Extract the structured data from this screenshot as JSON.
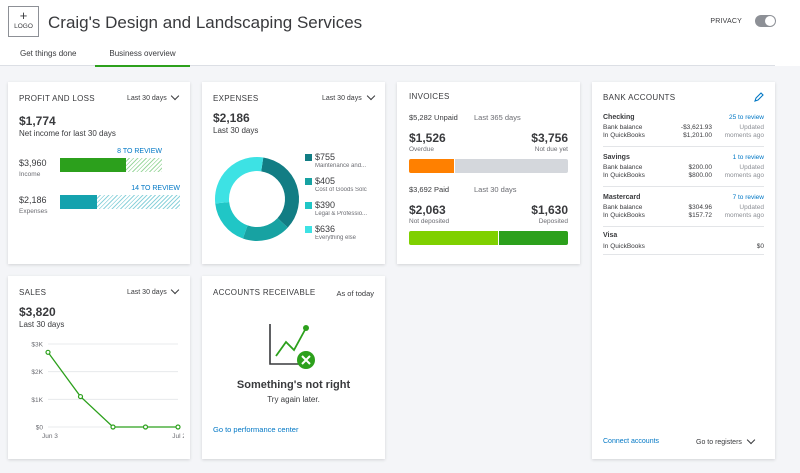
{
  "header": {
    "logo_plus": "+",
    "logo_text": "LOGO",
    "company": "Craig's Design and Landscaping Services",
    "privacy": "PRIVACY"
  },
  "tabs": [
    {
      "label": "Get things done",
      "active": false
    },
    {
      "label": "Business overview",
      "active": true
    }
  ],
  "profit_loss": {
    "title": "PROFIT AND LOSS",
    "period": "Last 30 days",
    "net_value": "$1,774",
    "net_label": "Net income for last 30 days",
    "income_value": "$3,960",
    "income_label": "Income",
    "income_review": "8 TO REVIEW",
    "expenses_value": "$2,186",
    "expenses_label": "Expenses",
    "expenses_review": "14 TO REVIEW",
    "income_fill": 0.65,
    "expenses_fill": 0.31
  },
  "expenses": {
    "title": "EXPENSES",
    "period": "Last 30 days",
    "total": "$2,186",
    "total_label": "Last 30 days",
    "items": [
      {
        "value": "$755",
        "label": "Maintenance and...",
        "amount": 755,
        "color": "#127d84"
      },
      {
        "value": "$405",
        "label": "Cost of Goods Solc",
        "amount": 405,
        "color": "#17a2a2"
      },
      {
        "value": "$390",
        "label": "Legal & Professio...",
        "amount": 390,
        "color": "#20c6c6"
      },
      {
        "value": "$636",
        "label": "Everything else",
        "amount": 636,
        "color": "#3de2e4"
      }
    ]
  },
  "invoices": {
    "title": "INVOICES",
    "unpaid": "$5,282 Unpaid",
    "unpaid_period": "Last 365 days",
    "overdue_value": "$1,526",
    "overdue_label": "Overdue",
    "not_due_value": "$3,756",
    "not_due_label": "Not due yet",
    "paid": "$3,692 Paid",
    "paid_period": "Last 30 days",
    "not_deposited_value": "$2,063",
    "not_deposited_label": "Not deposited",
    "deposited_value": "$1,630",
    "deposited_label": "Deposited",
    "colors": {
      "overdue": "#ff8000",
      "not_due": "#d4d7dc",
      "not_deposited": "#7fd000",
      "deposited": "#2ca01c"
    }
  },
  "bank_accounts": {
    "title": "BANK ACCOUNTS",
    "accounts": [
      {
        "name": "Checking",
        "review": "25 to review",
        "bank_label": "Bank balance",
        "bank_value": "-$3,621.93",
        "qb_label": "In QuickBooks",
        "qb_value": "$1,201.00",
        "updated1": "Updated",
        "updated2": "moments ago"
      },
      {
        "name": "Savings",
        "review": "1 to review",
        "bank_label": "Bank balance",
        "bank_value": "$200.00",
        "qb_label": "In QuickBooks",
        "qb_value": "$800.00",
        "updated1": "Updated",
        "updated2": "moments ago"
      },
      {
        "name": "Mastercard",
        "review": "7 to review",
        "bank_label": "Bank balance",
        "bank_value": "$304.96",
        "qb_label": "In QuickBooks",
        "qb_value": "$157.72",
        "updated1": "Updated",
        "updated2": "moments ago"
      }
    ],
    "visa": {
      "name": "Visa",
      "qb_label": "In QuickBooks",
      "qb_value": "$0"
    },
    "connect": "Connect accounts",
    "registers": "Go to registers"
  },
  "sales": {
    "title": "SALES",
    "period": "Last 30 days",
    "total": "$3,820",
    "total_label": "Last 30 days"
  },
  "chart_data": {
    "type": "line",
    "x": [
      "Jun 3",
      "",
      "",
      "",
      "Jul 2"
    ],
    "values": [
      2700,
      1100,
      0,
      0,
      0
    ],
    "ylim": [
      0,
      3000
    ],
    "yticks": [
      "$3K",
      "$2K",
      "$1K",
      "$0"
    ],
    "xtick_labels": [
      "Jun 3",
      "Jul 2"
    ],
    "color": "#2ca01c"
  },
  "receivable": {
    "title": "ACCOUNTS RECEIVABLE",
    "as_of": "As of today",
    "error_title": "Something's not right",
    "error_sub": "Try again later.",
    "link": "Go to performance center"
  }
}
